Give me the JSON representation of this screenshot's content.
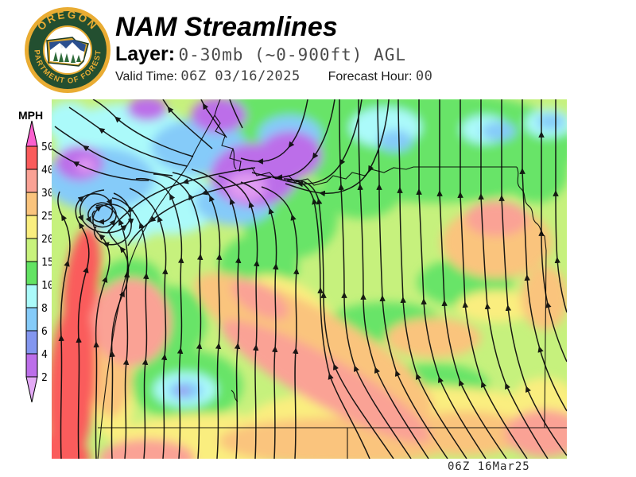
{
  "header": {
    "title": "NAM Streamlines",
    "layer_label": "Layer:",
    "layer_value": "0-30mb (~0-900ft) AGL",
    "valid_time_label": "Valid Time:",
    "valid_time_value": "06Z 03/16/2025",
    "forecast_hour_label": "Forecast Hour:",
    "forecast_hour_value": "00"
  },
  "logo": {
    "ring_text_top": "OREGON",
    "ring_text_bottom": "DEPARTMENT OF FORESTRY",
    "colors": {
      "gold": "#E9AC33",
      "dark_green": "#234F30",
      "white": "#ffffff",
      "blue": "#2B4F8E"
    }
  },
  "legend": {
    "title": "MPH",
    "boundary_labels": [
      "50",
      "40",
      "30",
      "25",
      "20",
      "15",
      "10",
      "8",
      "6",
      "4",
      "2"
    ],
    "colors": {
      "above_max": "#FA60CE",
      "segments": [
        "#FA5B5B",
        "#FAA295",
        "#FAC47D",
        "#FAEE7F",
        "#C8F27D",
        "#63E363",
        "#ABFAFA",
        "#85CBF9",
        "#8396EF",
        "#BC6EE9"
      ],
      "below_min": "#E3AAF5"
    }
  },
  "map": {
    "timestamp": "06Z 16Mar25"
  }
}
